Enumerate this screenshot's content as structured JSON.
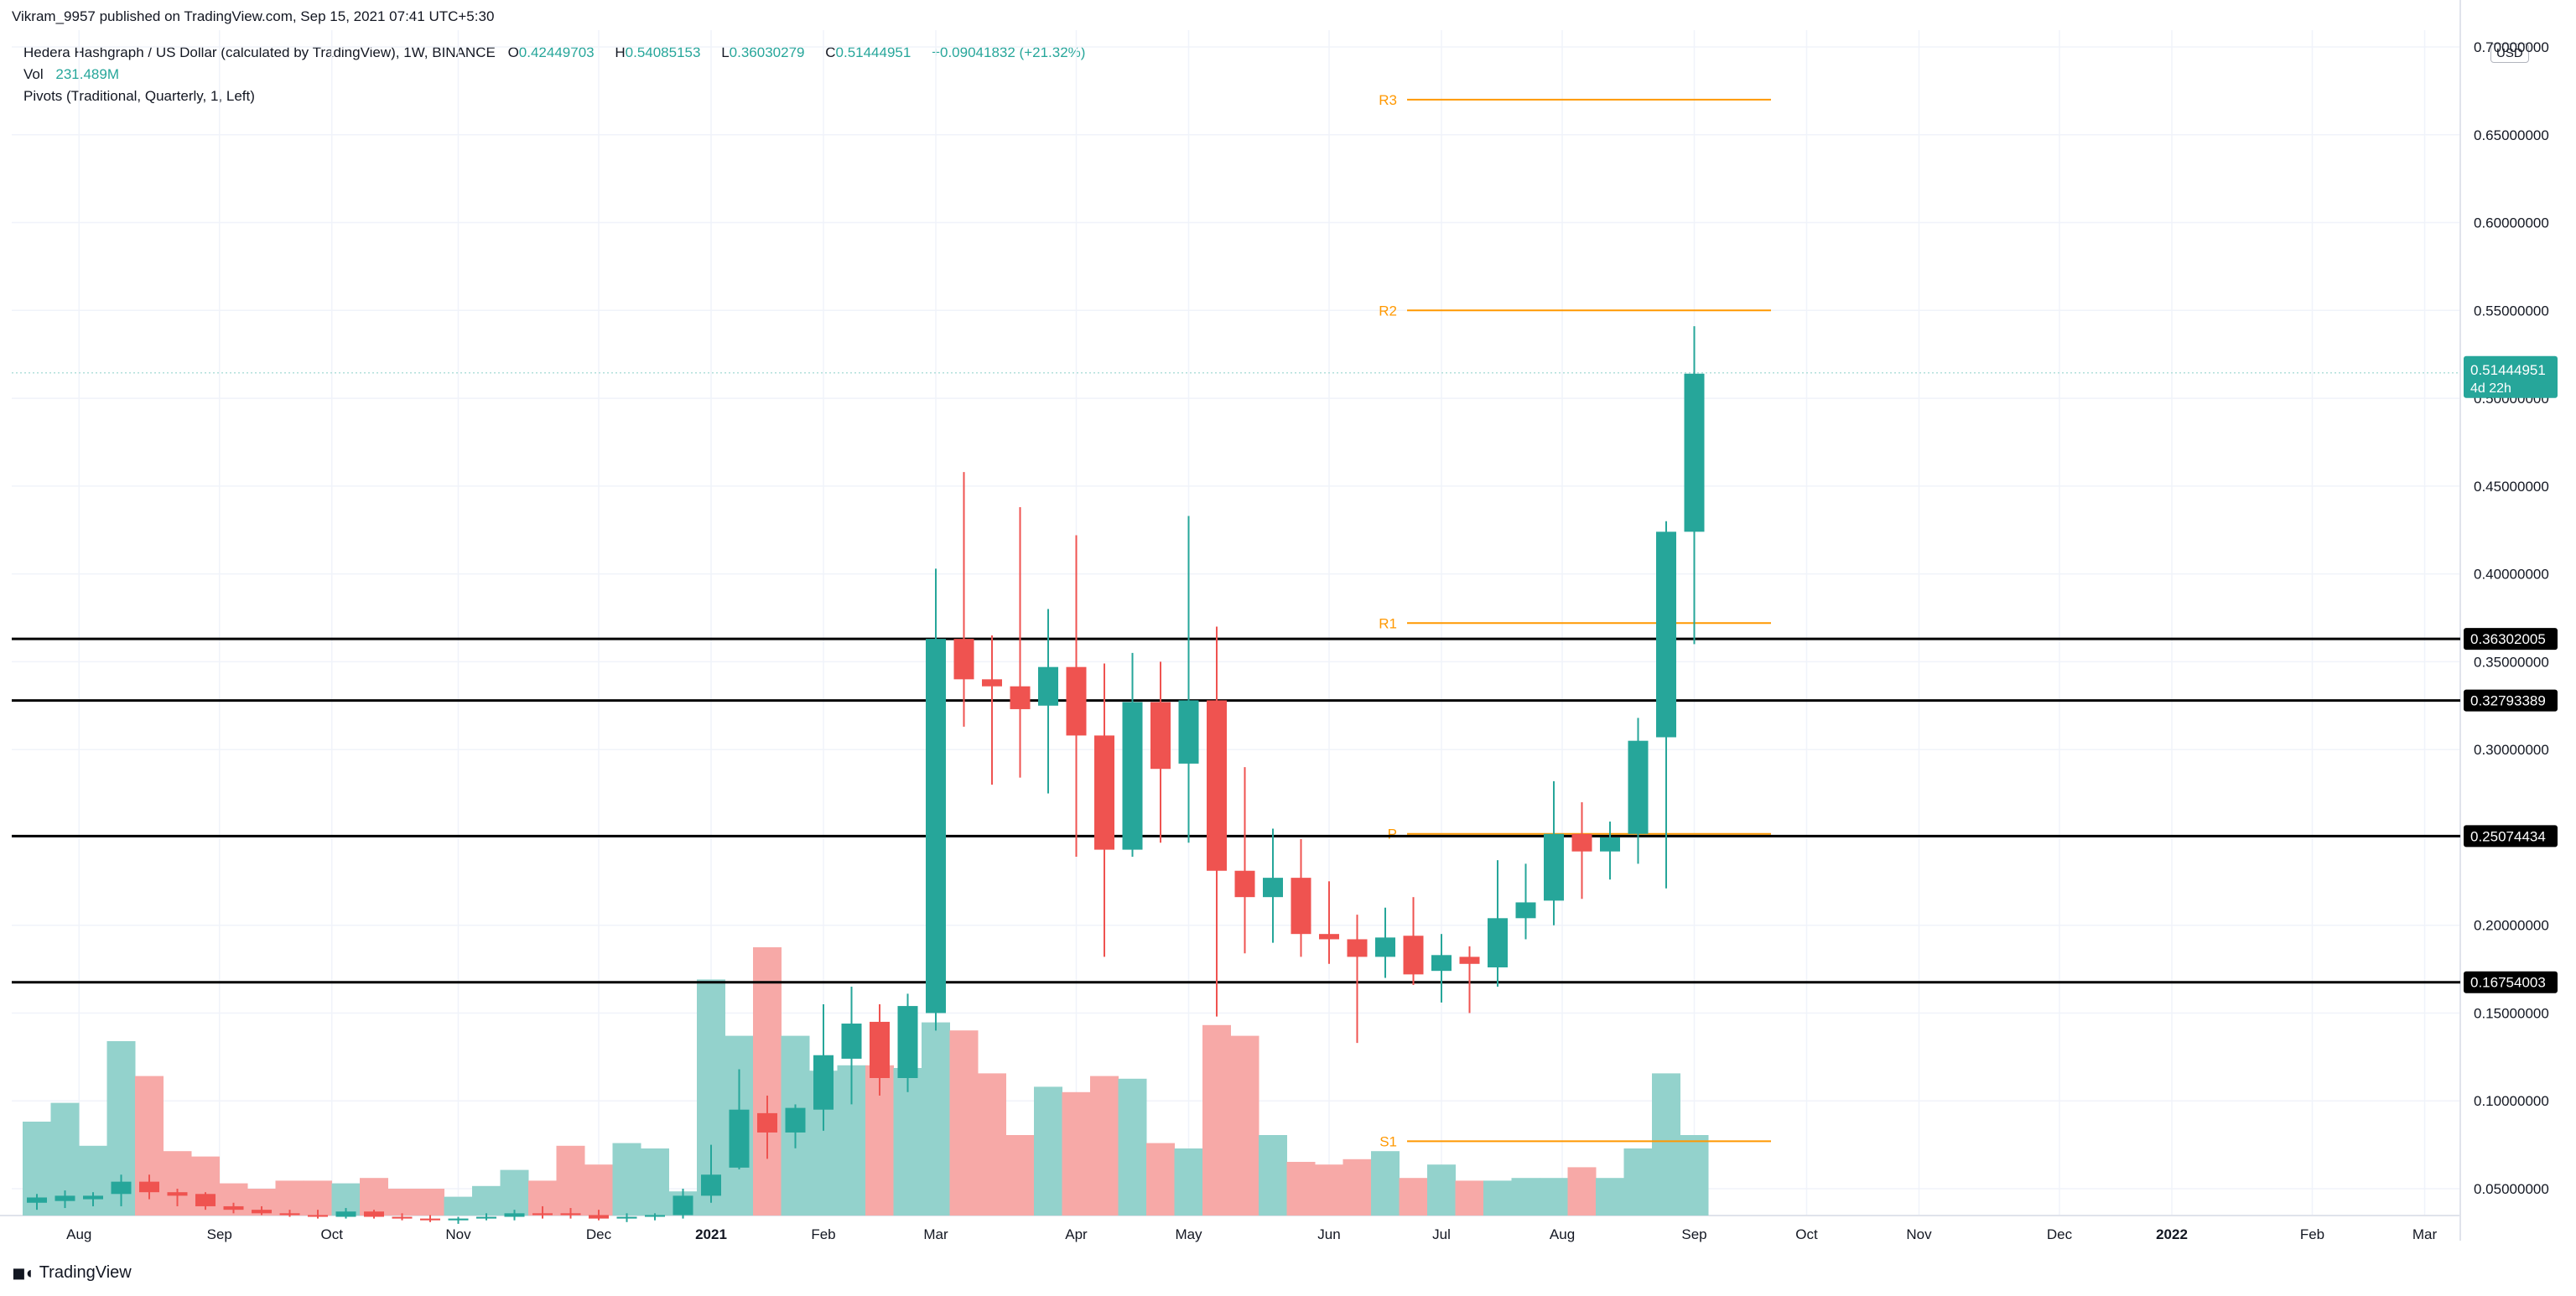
{
  "header": {
    "published": "Vikram_9957 published on TradingView.com, Sep 15, 2021 07:41 UTC+5:30",
    "symbol": "Hedera Hashgraph / US Dollar (calculated by TradingView), 1W, BINANCE",
    "ohlc": {
      "o_label": "O",
      "o": "0.42449703",
      "h_label": "H",
      "h": "0.54085153",
      "l_label": "L",
      "l": "0.36030279",
      "c_label": "C",
      "c": "0.51444951",
      "change": "+0.09041832 (+21.32%)"
    },
    "vol_label": "Vol",
    "vol_value": "231.489M",
    "pivots_label": "Pivots (Traditional, Quarterly, 1, Left)"
  },
  "currency_badge": "USD",
  "brand": "TradingView",
  "colors": {
    "up": "#26a69a",
    "down": "#ef5350",
    "vol_up": "#93d2cc",
    "vol_down": "#f7a9a7",
    "pivot": "#ff9800",
    "grid": "#f0f3fa",
    "axis_text": "#131722"
  },
  "chart_data": {
    "type": "candlestick",
    "timeframe": "1W",
    "y_axis": {
      "scale": "linear",
      "ylim": [
        0.02,
        0.72
      ],
      "tick_labels": [
        "0.05000000",
        "0.10000000",
        "0.15000000",
        "0.20000000",
        "0.25000000",
        "0.30000000",
        "0.35000000",
        "0.40000000",
        "0.45000000",
        "0.50000000",
        "0.55000000",
        "0.60000000",
        "0.65000000",
        "0.70000000"
      ],
      "ticks": [
        0.05,
        0.1,
        0.15,
        0.2,
        0.25,
        0.3,
        0.35,
        0.4,
        0.45,
        0.5,
        0.55,
        0.6,
        0.65,
        0.7
      ]
    },
    "x_axis": {
      "labels": [
        {
          "text": "Aug",
          "i": 1.5
        },
        {
          "text": "Sep",
          "i": 6.5
        },
        {
          "text": "Oct",
          "i": 10.5
        },
        {
          "text": "Nov",
          "i": 15
        },
        {
          "text": "Dec",
          "i": 20
        },
        {
          "text": "2021",
          "i": 24
        },
        {
          "text": "Feb",
          "i": 28
        },
        {
          "text": "Mar",
          "i": 32
        },
        {
          "text": "Apr",
          "i": 37
        },
        {
          "text": "May",
          "i": 41
        },
        {
          "text": "Jun",
          "i": 46
        },
        {
          "text": "Jul",
          "i": 50
        },
        {
          "text": "Aug",
          "i": 54.3
        },
        {
          "text": "Sep",
          "i": 59
        },
        {
          "text": "Oct",
          "i": 63
        },
        {
          "text": "Nov",
          "i": 67
        },
        {
          "text": "Dec",
          "i": 72
        },
        {
          "text": "2022",
          "i": 76
        },
        {
          "text": "Feb",
          "i": 81
        },
        {
          "text": "Mar",
          "i": 85
        }
      ],
      "bold_labels": [
        "2021",
        "2022"
      ]
    },
    "candles": [
      {
        "o": 0.042,
        "h": 0.047,
        "l": 0.038,
        "c": 0.045
      },
      {
        "o": 0.043,
        "h": 0.049,
        "l": 0.039,
        "c": 0.046
      },
      {
        "o": 0.044,
        "h": 0.048,
        "l": 0.04,
        "c": 0.046
      },
      {
        "o": 0.047,
        "h": 0.058,
        "l": 0.04,
        "c": 0.054
      },
      {
        "o": 0.054,
        "h": 0.058,
        "l": 0.044,
        "c": 0.048
      },
      {
        "o": 0.048,
        "h": 0.05,
        "l": 0.04,
        "c": 0.046
      },
      {
        "o": 0.047,
        "h": 0.048,
        "l": 0.038,
        "c": 0.04
      },
      {
        "o": 0.04,
        "h": 0.042,
        "l": 0.036,
        "c": 0.038
      },
      {
        "o": 0.038,
        "h": 0.04,
        "l": 0.035,
        "c": 0.036
      },
      {
        "o": 0.036,
        "h": 0.038,
        "l": 0.034,
        "c": 0.035
      },
      {
        "o": 0.035,
        "h": 0.038,
        "l": 0.033,
        "c": 0.034
      },
      {
        "o": 0.034,
        "h": 0.039,
        "l": 0.033,
        "c": 0.037
      },
      {
        "o": 0.037,
        "h": 0.038,
        "l": 0.033,
        "c": 0.034
      },
      {
        "o": 0.034,
        "h": 0.036,
        "l": 0.032,
        "c": 0.033
      },
      {
        "o": 0.033,
        "h": 0.035,
        "l": 0.031,
        "c": 0.032
      },
      {
        "o": 0.032,
        "h": 0.034,
        "l": 0.03,
        "c": 0.033
      },
      {
        "o": 0.033,
        "h": 0.036,
        "l": 0.032,
        "c": 0.034
      },
      {
        "o": 0.034,
        "h": 0.038,
        "l": 0.032,
        "c": 0.036
      },
      {
        "o": 0.036,
        "h": 0.04,
        "l": 0.033,
        "c": 0.035
      },
      {
        "o": 0.036,
        "h": 0.039,
        "l": 0.033,
        "c": 0.035
      },
      {
        "o": 0.035,
        "h": 0.038,
        "l": 0.032,
        "c": 0.033
      },
      {
        "o": 0.033,
        "h": 0.036,
        "l": 0.031,
        "c": 0.034
      },
      {
        "o": 0.034,
        "h": 0.036,
        "l": 0.032,
        "c": 0.035
      },
      {
        "o": 0.035,
        "h": 0.05,
        "l": 0.033,
        "c": 0.046
      },
      {
        "o": 0.046,
        "h": 0.075,
        "l": 0.042,
        "c": 0.058
      },
      {
        "o": 0.062,
        "h": 0.118,
        "l": 0.061,
        "c": 0.095
      },
      {
        "o": 0.093,
        "h": 0.103,
        "l": 0.067,
        "c": 0.082
      },
      {
        "o": 0.082,
        "h": 0.098,
        "l": 0.073,
        "c": 0.096
      },
      {
        "o": 0.095,
        "h": 0.155,
        "l": 0.083,
        "c": 0.126
      },
      {
        "o": 0.124,
        "h": 0.165,
        "l": 0.098,
        "c": 0.144
      },
      {
        "o": 0.145,
        "h": 0.155,
        "l": 0.103,
        "c": 0.113
      },
      {
        "o": 0.113,
        "h": 0.161,
        "l": 0.105,
        "c": 0.154
      },
      {
        "o": 0.15,
        "h": 0.403,
        "l": 0.14,
        "c": 0.363
      },
      {
        "o": 0.363,
        "h": 0.458,
        "l": 0.313,
        "c": 0.34
      },
      {
        "o": 0.34,
        "h": 0.365,
        "l": 0.28,
        "c": 0.336
      },
      {
        "o": 0.336,
        "h": 0.438,
        "l": 0.284,
        "c": 0.323
      },
      {
        "o": 0.325,
        "h": 0.38,
        "l": 0.275,
        "c": 0.347
      },
      {
        "o": 0.347,
        "h": 0.422,
        "l": 0.239,
        "c": 0.308
      },
      {
        "o": 0.308,
        "h": 0.349,
        "l": 0.182,
        "c": 0.243
      },
      {
        "o": 0.243,
        "h": 0.355,
        "l": 0.239,
        "c": 0.327
      },
      {
        "o": 0.327,
        "h": 0.35,
        "l": 0.247,
        "c": 0.289
      },
      {
        "o": 0.292,
        "h": 0.433,
        "l": 0.247,
        "c": 0.328
      },
      {
        "o": 0.328,
        "h": 0.37,
        "l": 0.148,
        "c": 0.231
      },
      {
        "o": 0.231,
        "h": 0.29,
        "l": 0.184,
        "c": 0.216
      },
      {
        "o": 0.216,
        "h": 0.255,
        "l": 0.19,
        "c": 0.227
      },
      {
        "o": 0.227,
        "h": 0.249,
        "l": 0.182,
        "c": 0.195
      },
      {
        "o": 0.195,
        "h": 0.225,
        "l": 0.178,
        "c": 0.192
      },
      {
        "o": 0.192,
        "h": 0.206,
        "l": 0.133,
        "c": 0.182
      },
      {
        "o": 0.182,
        "h": 0.21,
        "l": 0.17,
        "c": 0.193
      },
      {
        "o": 0.194,
        "h": 0.216,
        "l": 0.166,
        "c": 0.172
      },
      {
        "o": 0.174,
        "h": 0.195,
        "l": 0.156,
        "c": 0.183
      },
      {
        "o": 0.182,
        "h": 0.188,
        "l": 0.15,
        "c": 0.178
      },
      {
        "o": 0.176,
        "h": 0.237,
        "l": 0.165,
        "c": 0.204
      },
      {
        "o": 0.204,
        "h": 0.235,
        "l": 0.192,
        "c": 0.213
      },
      {
        "o": 0.214,
        "h": 0.282,
        "l": 0.2,
        "c": 0.252
      },
      {
        "o": 0.252,
        "h": 0.27,
        "l": 0.215,
        "c": 0.242
      },
      {
        "o": 0.242,
        "h": 0.259,
        "l": 0.226,
        "c": 0.25
      },
      {
        "o": 0.252,
        "h": 0.318,
        "l": 0.235,
        "c": 0.305
      },
      {
        "o": 0.307,
        "h": 0.43,
        "l": 0.221,
        "c": 0.424
      },
      {
        "o": 0.424,
        "h": 0.541,
        "l": 0.36,
        "c": 0.514
      }
    ],
    "volume": {
      "max_label_free": true,
      "values": [
        0.35,
        0.42,
        0.26,
        0.65,
        0.52,
        0.24,
        0.22,
        0.12,
        0.1,
        0.13,
        0.13,
        0.12,
        0.14,
        0.1,
        0.1,
        0.07,
        0.11,
        0.17,
        0.13,
        0.26,
        0.19,
        0.27,
        0.25,
        0.09,
        0.88,
        0.67,
        1.0,
        0.67,
        0.54,
        0.56,
        0.56,
        0.55,
        0.72,
        0.69,
        0.53,
        0.3,
        0.48,
        0.46,
        0.52,
        0.51,
        0.27,
        0.25,
        0.71,
        0.67,
        0.3,
        0.2,
        0.19,
        0.21,
        0.24,
        0.14,
        0.19,
        0.13,
        0.13,
        0.14,
        0.14,
        0.18,
        0.14,
        0.25,
        0.53,
        0.3
      ]
    },
    "pivots": [
      {
        "label": "R3",
        "value": 0.67
      },
      {
        "label": "R2",
        "value": 0.55
      },
      {
        "label": "R1",
        "value": 0.372
      },
      {
        "label": "P",
        "value": 0.252
      },
      {
        "label": "S1",
        "value": 0.077
      }
    ],
    "horizontal_lines": [
      {
        "label": "0.36302005",
        "value": 0.36302005
      },
      {
        "label": "0.32793389",
        "value": 0.32793389
      },
      {
        "label": "0.25074434",
        "value": 0.25074434
      },
      {
        "label": "0.16754003",
        "value": 0.16754003
      }
    ],
    "last_price": {
      "value": 0.51444951,
      "label": "0.51444951",
      "countdown": "4d 22h"
    }
  }
}
